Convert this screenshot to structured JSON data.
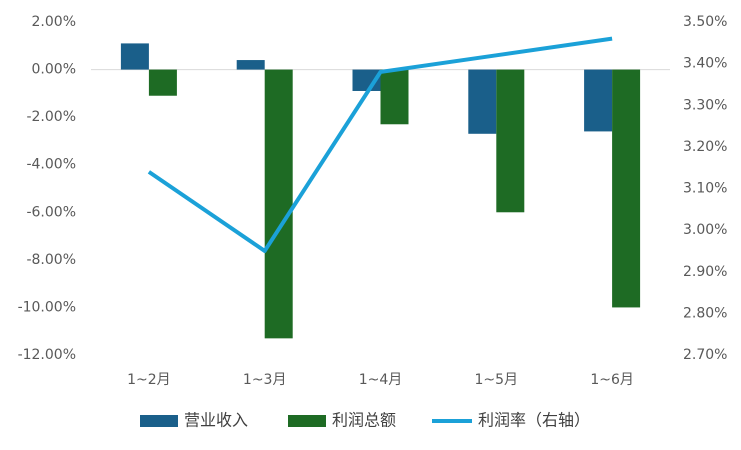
{
  "chart_data": {
    "type": "bar",
    "categories": [
      "1~2月",
      "1~3月",
      "1~4月",
      "1~5月",
      "1~6月"
    ],
    "series": [
      {
        "name": "营业收入",
        "color": "#1a5f8a",
        "values": [
          1.1,
          0.4,
          -0.9,
          -2.7,
          -2.6
        ]
      },
      {
        "name": "利润总额",
        "color": "#1e6b24",
        "values": [
          -1.1,
          -11.3,
          -2.3,
          -6.0,
          -10.0
        ]
      },
      {
        "name": "利润率（右轴）",
        "color": "#1ba1d8",
        "type": "line",
        "axis": "y2",
        "values": [
          3.14,
          2.95,
          3.38,
          3.42,
          3.46
        ]
      }
    ],
    "ylim": [
      -12,
      2
    ],
    "yticks": [
      {
        "value": 2,
        "label": "2.00%"
      },
      {
        "value": 0,
        "label": "0.00%"
      },
      {
        "value": -2,
        "label": "-2.00%"
      },
      {
        "value": -4,
        "label": "-4.00%"
      },
      {
        "value": -6,
        "label": "-6.00%"
      },
      {
        "value": -8,
        "label": "-8.00%"
      },
      {
        "value": -10,
        "label": "-10.00%"
      },
      {
        "value": -12,
        "label": "-12.00%"
      }
    ],
    "y2lim": [
      2.7,
      3.5
    ],
    "y2ticks": [
      {
        "value": 3.5,
        "label": "3.50%"
      },
      {
        "value": 3.4,
        "label": "3.40%"
      },
      {
        "value": 3.3,
        "label": "3.30%"
      },
      {
        "value": 3.2,
        "label": "3.20%"
      },
      {
        "value": 3.1,
        "label": "3.10%"
      },
      {
        "value": 3.0,
        "label": "3.00%"
      },
      {
        "value": 2.9,
        "label": "2.90%"
      },
      {
        "value": 2.8,
        "label": "2.80%"
      },
      {
        "value": 2.7,
        "label": "2.70%"
      }
    ],
    "grid": false,
    "legend": "bottom"
  }
}
